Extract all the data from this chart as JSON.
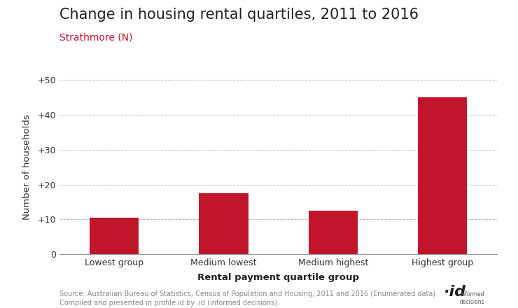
{
  "title": "Change in housing rental quartiles, 2011 to 2016",
  "subtitle": "Strathmore (N)",
  "categories": [
    "Lowest group",
    "Medium lowest",
    "Medium highest",
    "Highest group"
  ],
  "values": [
    10.5,
    17.5,
    12.5,
    45
  ],
  "bar_color": "#c0152a",
  "xlabel": "Rental payment quartile group",
  "ylabel": "Number of households",
  "ylim": [
    0,
    50
  ],
  "yticks": [
    0,
    10,
    20,
    30,
    40,
    50
  ],
  "ytick_labels": [
    "0",
    "+10",
    "+20",
    "+30",
    "+40",
    "+50"
  ],
  "grid_color": "#bbbbbb",
  "background_color": "#ffffff",
  "title_fontsize": 15,
  "subtitle_fontsize": 10,
  "subtitle_color": "#c0152a",
  "axis_label_fontsize": 9.5,
  "tick_fontsize": 9,
  "source_text": "Source: Australian Bureau of Statistics, Census of Population and Housing, 2011 and 2016 (Enumerated data)\nCompiled and presented in profile.id by .id (informed decisions).",
  "source_fontsize": 7
}
